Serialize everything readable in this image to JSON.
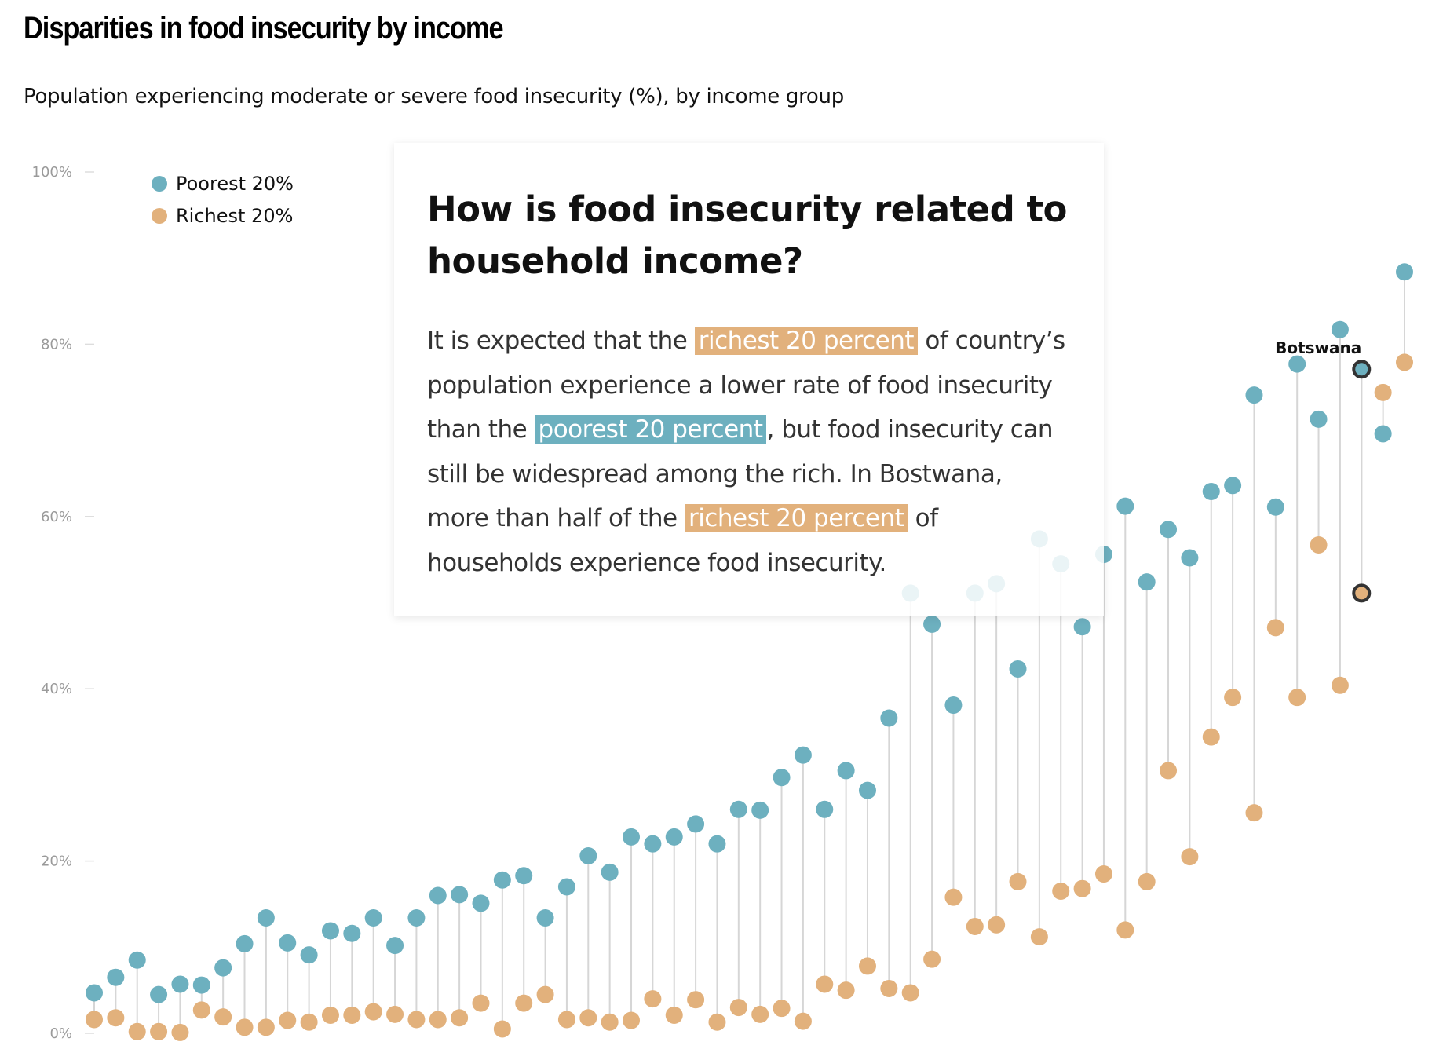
{
  "header": {
    "title": "Disparities in food insecurity by income",
    "subtitle": "Population experiencing moderate or severe food insecurity (%), by income group"
  },
  "legend": {
    "items": [
      {
        "label": "Poorest 20%",
        "color": "#6db0bf"
      },
      {
        "label": "Richest 20%",
        "color": "#e2b17c"
      }
    ]
  },
  "popup": {
    "title": "How is food insecurity related to household income?",
    "body": [
      {
        "text": "It is expected that the "
      },
      {
        "text": "richest 20 percent",
        "highlight": "rich"
      },
      {
        "text": " of country’s population experience a lower rate of food insecurity than the "
      },
      {
        "text": "poorest 20 percent",
        "highlight": "poor"
      },
      {
        "text": ", but food insecurity can still be widespread among the rich. In Bostwana, more than half of the "
      },
      {
        "text": "richest 20 percent",
        "highlight": "rich"
      },
      {
        "text": " of households experience food insecurity."
      }
    ]
  },
  "colors": {
    "poorest": "#6db0bf",
    "richest": "#e2b17c",
    "connector": "#d6d6d6",
    "highlight_ring": "#333333",
    "axis_label": "#9a9a9a"
  },
  "chart_data": {
    "type": "dumbbell",
    "title": "Disparities in food insecurity by income",
    "subtitle": "Population experiencing moderate or severe food insecurity (%), by income group",
    "xlabel": "",
    "ylabel": "",
    "ylim": [
      0,
      100
    ],
    "yticks": [
      0,
      20,
      40,
      60,
      80,
      100
    ],
    "ytick_labels": [
      "0%",
      "20%",
      "40%",
      "60%",
      "80%",
      "100%"
    ],
    "grid": false,
    "legend_position": "top-left",
    "series": [
      {
        "name": "Poorest 20%",
        "color": "#6db0bf",
        "values": [
          4.7,
          6.5,
          8.5,
          4.5,
          5.7,
          5.6,
          7.6,
          10.4,
          13.4,
          10.5,
          9.1,
          11.9,
          11.6,
          13.4,
          10.2,
          13.4,
          16.0,
          16.1,
          15.1,
          17.8,
          18.3,
          13.4,
          17.0,
          20.6,
          18.7,
          22.8,
          22.0,
          22.8,
          24.3,
          22.0,
          26.0,
          25.9,
          29.7,
          32.3,
          26.0,
          30.5,
          28.2,
          36.6,
          51.1,
          47.5,
          38.1,
          51.1,
          52.2,
          42.3,
          57.4,
          54.5,
          47.2,
          55.6,
          61.2,
          52.4,
          58.5,
          55.2,
          62.9,
          63.6,
          74.1,
          61.1,
          77.7,
          71.3,
          81.7,
          77.1,
          69.6,
          88.4
        ]
      },
      {
        "name": "Richest 20%",
        "color": "#e2b17c",
        "values": [
          1.6,
          1.8,
          0.2,
          0.2,
          0.1,
          2.7,
          1.9,
          0.7,
          0.7,
          1.5,
          1.3,
          2.1,
          2.1,
          2.5,
          2.2,
          1.6,
          1.6,
          1.8,
          3.5,
          0.5,
          3.5,
          4.5,
          1.6,
          1.8,
          1.3,
          1.5,
          4.0,
          2.1,
          3.9,
          1.3,
          3.0,
          2.2,
          2.9,
          1.4,
          5.7,
          5.0,
          7.8,
          5.2,
          4.7,
          8.6,
          15.8,
          12.4,
          12.6,
          17.6,
          11.2,
          16.5,
          16.8,
          18.5,
          12.0,
          17.6,
          30.5,
          20.5,
          34.4,
          39.0,
          25.6,
          47.1,
          39.0,
          56.7,
          40.4,
          51.1,
          74.4,
          77.9
        ]
      }
    ],
    "highlighted": {
      "index": 59,
      "label": "Botswana"
    },
    "obscured_by_popup_indices": [
      38,
      41,
      42,
      44,
      45
    ]
  }
}
